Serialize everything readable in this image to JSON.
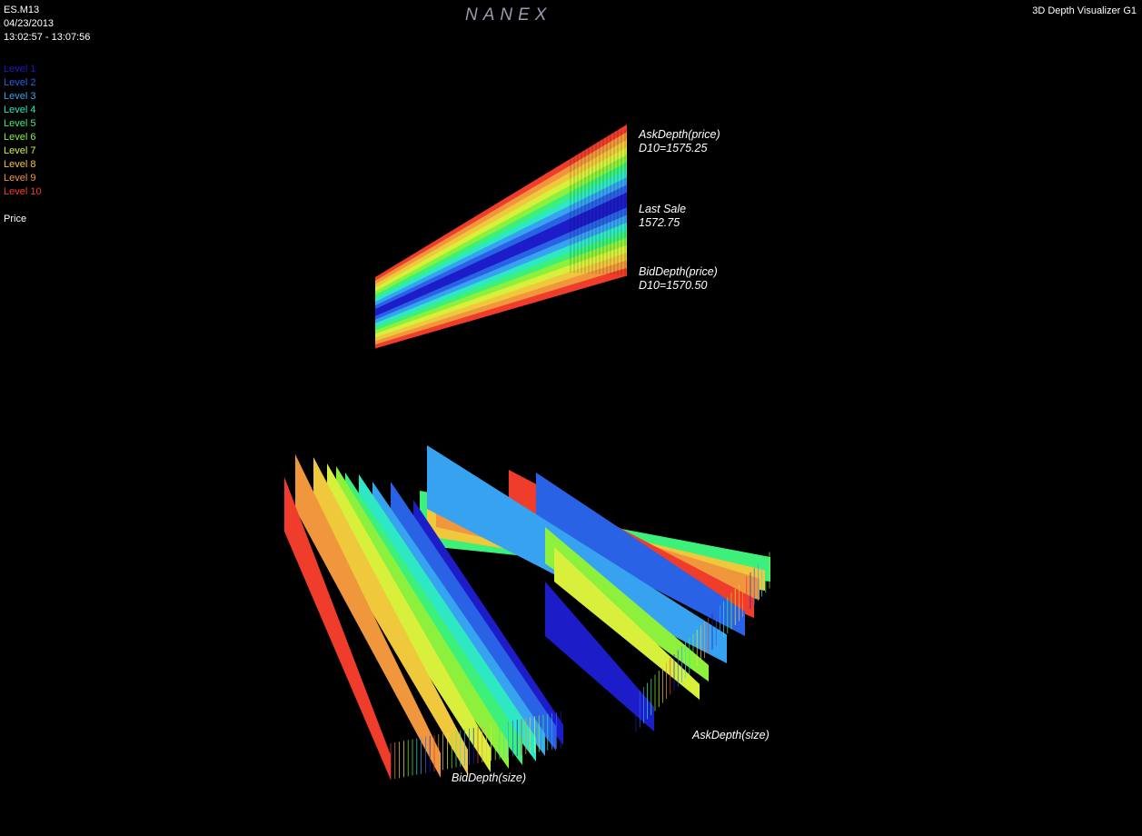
{
  "header": {
    "symbol": "ES.M13",
    "date": "04/23/2013",
    "time_range": "13:02:57 - 13:07:56",
    "brand": "NANEX",
    "app_title": "3D Depth Visualizer G1"
  },
  "legend": {
    "items": [
      {
        "label": "Level 1",
        "color": "#1c1cc8"
      },
      {
        "label": "Level 2",
        "color": "#2a62e6"
      },
      {
        "label": "Level 3",
        "color": "#36a2f0"
      },
      {
        "label": "Level 4",
        "color": "#2ee8c4"
      },
      {
        "label": "Level 5",
        "color": "#3cf07a"
      },
      {
        "label": "Level 6",
        "color": "#8cf03c"
      },
      {
        "label": "Level 7",
        "color": "#d8f03c"
      },
      {
        "label": "Level 8",
        "color": "#f0c83c"
      },
      {
        "label": "Level 9",
        "color": "#f0963c"
      },
      {
        "label": "Level 10",
        "color": "#f03c2a"
      }
    ],
    "price_label": "Price"
  },
  "chart_data": [
    {
      "type": "area",
      "title": "",
      "annotations": {
        "ask_label": "AskDepth(price)",
        "ask_value": "D10=1575.25",
        "last_label": "Last Sale",
        "last_value": "1572.75",
        "bid_label": "BidDepth(price)",
        "bid_value": "D10=1570.50"
      },
      "last_sale": 1572.75,
      "ask_d10": 1575.25,
      "bid_d10": 1570.5
    },
    {
      "type": "area",
      "title": "",
      "annotations": {
        "bid_label": "BidDepth(size)",
        "ask_label": "AskDepth(size)"
      }
    }
  ]
}
